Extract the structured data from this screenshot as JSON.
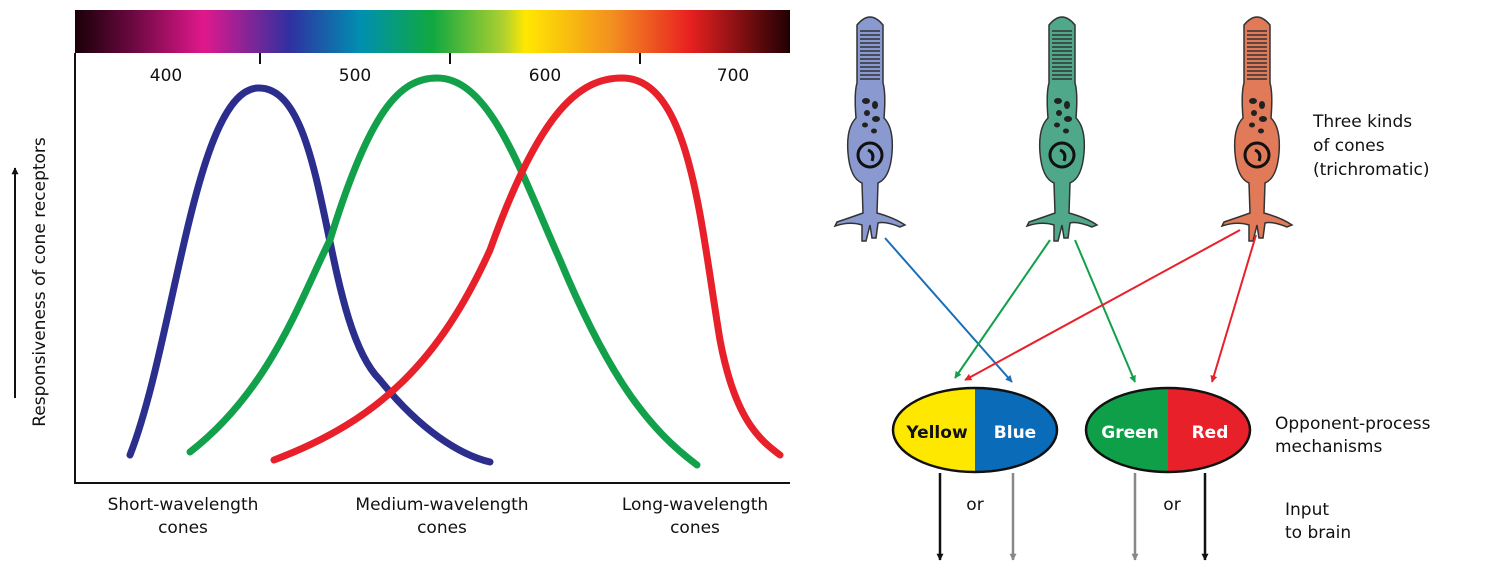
{
  "spectrum_ticks": [
    "400",
    "500",
    "600",
    "700"
  ],
  "y_axis_label": "Responsiveness of cone receptors",
  "curve_labels": [
    {
      "lines": [
        "Short-wavelength",
        "cones"
      ]
    },
    {
      "lines": [
        "Medium-wavelength",
        "cones"
      ]
    },
    {
      "lines": [
        "Long-wavelength",
        "cones"
      ]
    }
  ],
  "cones_label": [
    "Three kinds",
    "of cones",
    "(trichromatic)"
  ],
  "mechanisms": [
    {
      "left": "Yellow",
      "right": "Blue"
    },
    {
      "left": "Green",
      "right": "Red"
    }
  ],
  "mechanisms_label": [
    "Opponent-process",
    "mechanisms"
  ],
  "or_labels": [
    "or",
    "or"
  ],
  "output_label": [
    "Input",
    "to brain"
  ]
}
